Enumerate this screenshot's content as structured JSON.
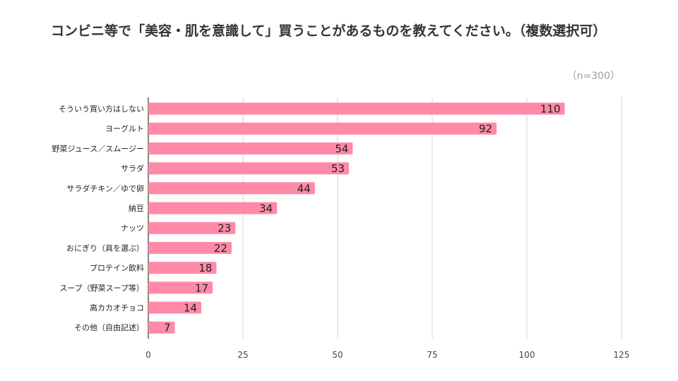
{
  "chart_data": {
    "type": "bar",
    "orientation": "horizontal",
    "title": "コンビニ等で「美容・肌を意識して」買うことがあるものを教えてください。（複数選択可）",
    "note": "（n=300）",
    "categories": [
      "そういう買い方はしない",
      "ヨーグルト",
      "野菜ジュース／スムージー",
      "サラダ",
      "サラダチキン／ゆで卵",
      "納豆",
      "ナッツ",
      "おにぎり（具を選ぶ）",
      "プロテイン飲料",
      "スープ（野菜スープ等）",
      "高カカオチョコ",
      "その他（自由記述）"
    ],
    "values": [
      110,
      92,
      54,
      53,
      44,
      34,
      23,
      22,
      18,
      17,
      14,
      7
    ],
    "xlim": [
      0,
      125
    ],
    "xticks": [
      0,
      25,
      50,
      75,
      100,
      125
    ],
    "xlabel": "",
    "ylabel": "",
    "grid": true,
    "bar_color": "#ff8aa8"
  }
}
